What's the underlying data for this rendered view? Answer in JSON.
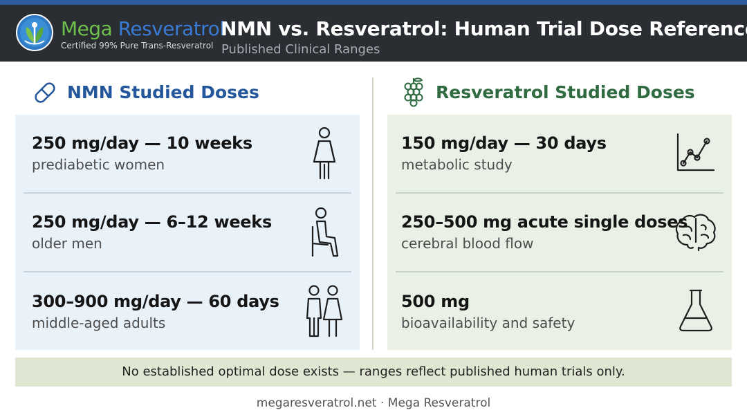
{
  "header": {
    "brand_part1": "Mega ",
    "brand_part2": "Resveratrol",
    "tagline": "Certified 99% Pure Trans-Resveratrol",
    "title": "NMN vs. Resveratrol: Human Trial Dose Reference",
    "subtitle": "Published Clinical Ranges"
  },
  "nmn": {
    "title": "NMN Studied Doses",
    "icon": "pill-icon",
    "rows": [
      {
        "dose": "250 mg/day — 10 weeks",
        "desc": "prediabetic women",
        "icon": "woman-icon"
      },
      {
        "dose": "250 mg/day — 6–12 weeks",
        "desc": "older men",
        "icon": "seated-man-icon"
      },
      {
        "dose": "300–900 mg/day — 60 days",
        "desc": "middle-aged adults",
        "icon": "couple-icon"
      }
    ]
  },
  "resveratrol": {
    "title": "Resveratrol Studied Doses",
    "icon": "grapes-icon",
    "rows": [
      {
        "dose": "150 mg/day — 30 days",
        "desc": "metabolic study",
        "icon": "line-chart-icon"
      },
      {
        "dose": "250–500 mg acute single doses",
        "desc": "cerebral blood flow",
        "icon": "brain-icon"
      },
      {
        "dose": "500 mg",
        "desc": "bioavailability and safety",
        "icon": "flask-icon"
      }
    ]
  },
  "note": "No established optimal dose exists — ranges reflect published human trials only.",
  "footer": "megaresveratrol.net · Mega Resveratrol",
  "colors": {
    "header_bg": "#2a2d31",
    "accent_blue": "#23569b",
    "accent_green": "#2f6a40",
    "nmn_panel": "#e9f1f9",
    "res_panel": "#e9f0e6",
    "note_bg": "#dfe6d2"
  }
}
